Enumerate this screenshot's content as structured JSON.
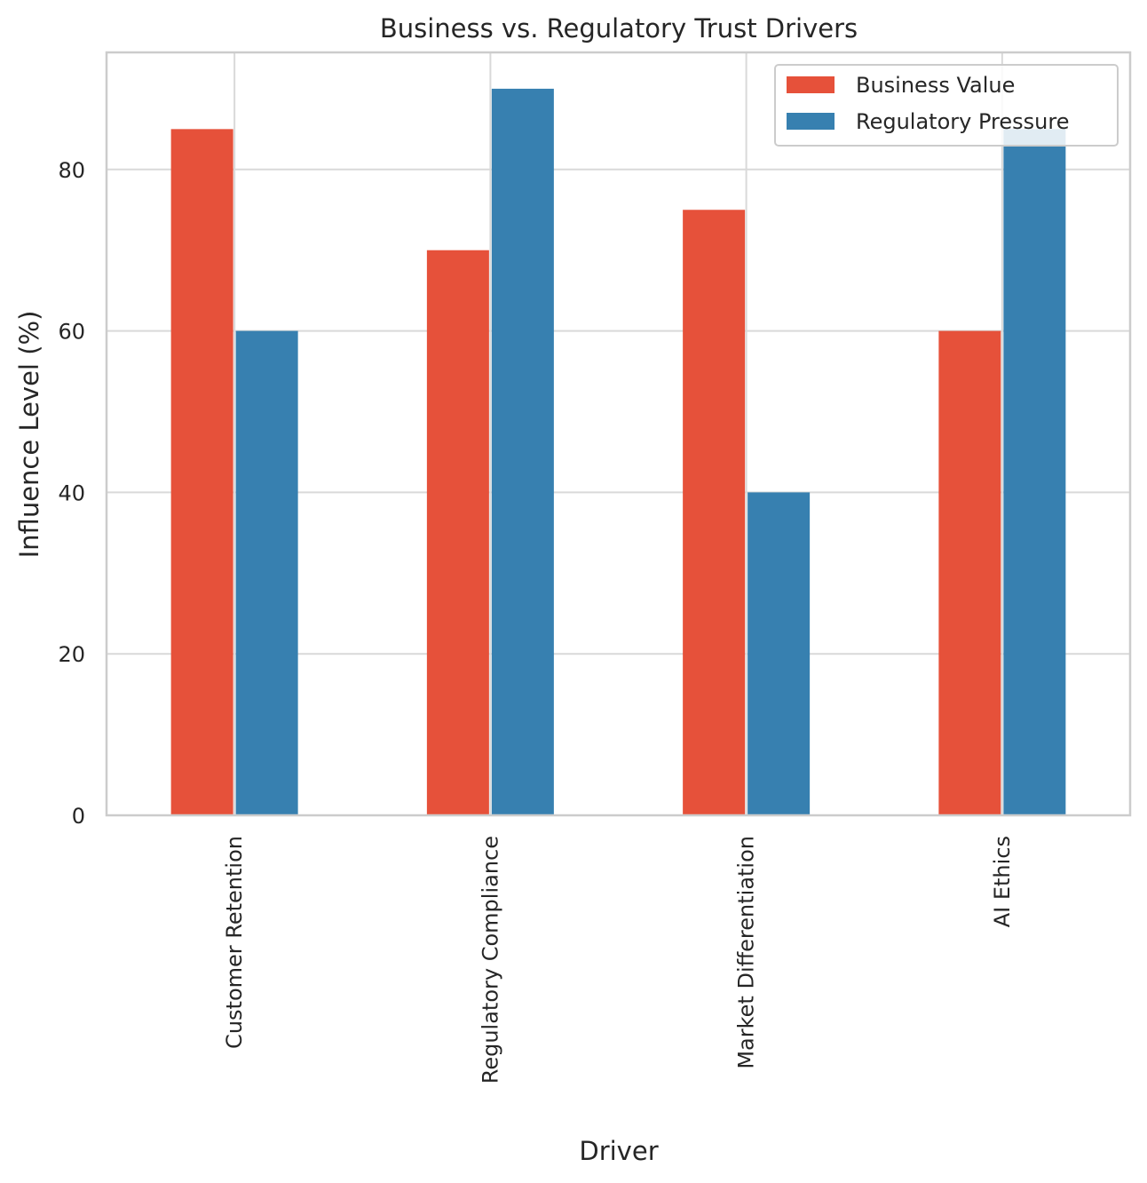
{
  "chart_data": {
    "type": "bar",
    "title": "Business vs. Regulatory Trust Drivers",
    "xlabel": "Driver",
    "ylabel": "Influence Level (%)",
    "categories": [
      "Customer Retention",
      "Regulatory Compliance",
      "Market Differentiation",
      "AI Ethics"
    ],
    "series": [
      {
        "name": "Business Value",
        "color": "#e6513a",
        "values": [
          85,
          70,
          75,
          60
        ]
      },
      {
        "name": "Regulatory Pressure",
        "color": "#3780b0",
        "values": [
          60,
          90,
          40,
          85
        ]
      }
    ],
    "ylim": [
      0,
      94.5
    ],
    "yticks": [
      0,
      20,
      40,
      60,
      80
    ],
    "grid": true,
    "legend_position": "top-right"
  }
}
